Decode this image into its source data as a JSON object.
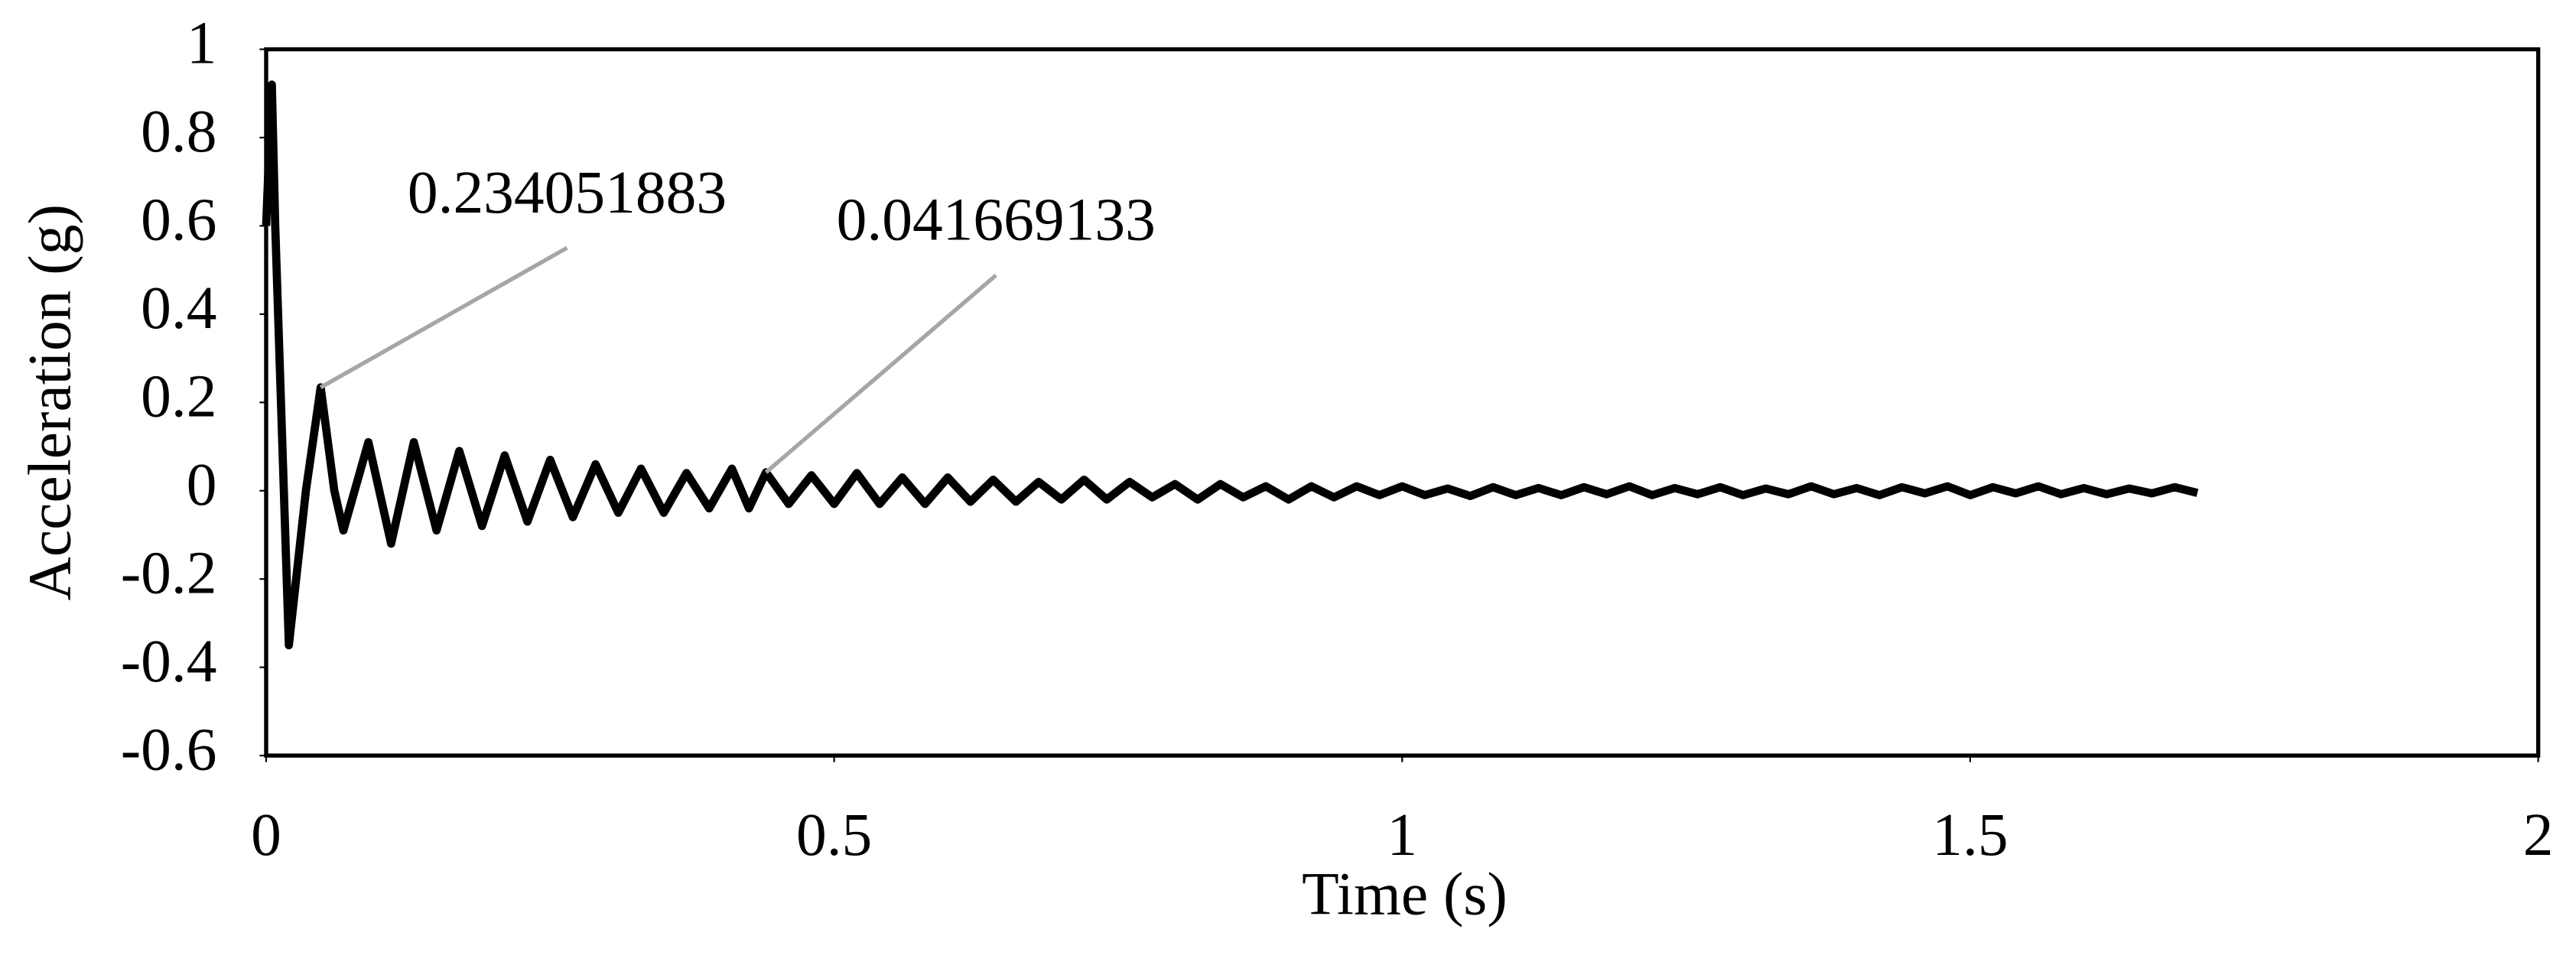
{
  "chart_data": {
    "type": "line",
    "x_label": "Time (s)",
    "y_label": "Acceleration (g)",
    "xlim": [
      0,
      2
    ],
    "xticks": [
      0,
      0.5,
      1,
      1.5,
      2
    ],
    "ylim": [
      -0.6,
      1
    ],
    "yticks": [
      -0.6,
      -0.4,
      -0.2,
      0,
      0.2,
      0.4,
      0.6,
      0.8,
      1
    ],
    "grid": false,
    "data_labels": [
      5,
      26
    ],
    "series": [
      {
        "color": "#000000",
        "x": [
          0,
          0.005,
          0.008,
          0.02,
          0.035,
          0.048,
          0.06,
          0.068,
          0.09,
          0.11,
          0.13,
          0.15,
          0.17,
          0.19,
          0.21,
          0.23,
          0.25,
          0.27,
          0.29,
          0.31,
          0.33,
          0.35,
          0.37,
          0.39,
          0.41,
          0.425,
          0.44,
          0.46,
          0.48,
          0.5,
          0.52,
          0.54,
          0.56,
          0.58,
          0.6,
          0.62,
          0.64,
          0.66,
          0.68,
          0.7,
          0.72,
          0.74,
          0.76,
          0.78,
          0.8,
          0.82,
          0.84,
          0.86,
          0.88,
          0.9,
          0.92,
          0.94,
          0.96,
          0.98,
          1.0,
          1.02,
          1.04,
          1.06,
          1.08,
          1.1,
          1.12,
          1.14,
          1.16,
          1.18,
          1.2,
          1.22,
          1.24,
          1.26,
          1.28,
          1.3,
          1.32,
          1.34,
          1.36,
          1.38,
          1.4,
          1.42,
          1.44,
          1.46,
          1.48,
          1.5,
          1.52,
          1.54,
          1.56,
          1.58,
          1.6,
          1.62,
          1.64,
          1.66,
          1.68,
          1.7
        ],
        "values": [
          0.6,
          0.92,
          0.6,
          -0.35,
          0,
          0.234051883,
          0,
          -0.09,
          0.11,
          -0.12,
          0.11,
          -0.09,
          0.09,
          -0.08,
          0.08,
          -0.07,
          0.07,
          -0.06,
          0.06,
          -0.05,
          0.05,
          -0.05,
          0.04,
          -0.04,
          0.05,
          -0.04,
          0.041669133,
          -0.03,
          0.035,
          -0.03,
          0.04,
          -0.03,
          0.03,
          -0.03,
          0.03,
          -0.025,
          0.025,
          -0.025,
          0.02,
          -0.02,
          0.025,
          -0.02,
          0.02,
          -0.015,
          0.015,
          -0.02,
          0.015,
          -0.015,
          0.01,
          -0.02,
          0.01,
          -0.015,
          0.01,
          -0.01,
          0.01,
          -0.01,
          0.005,
          -0.012,
          0.008,
          -0.01,
          0.006,
          -0.01,
          0.008,
          -0.008,
          0.01,
          -0.01,
          0.006,
          -0.008,
          0.008,
          -0.01,
          0.005,
          -0.008,
          0.01,
          -0.008,
          0.006,
          -0.01,
          0.008,
          -0.006,
          0.01,
          -0.01,
          0.008,
          -0.006,
          0.01,
          -0.008,
          0.006,
          -0.008,
          0.005,
          -0.006,
          0.008,
          -0.005
        ]
      }
    ]
  }
}
